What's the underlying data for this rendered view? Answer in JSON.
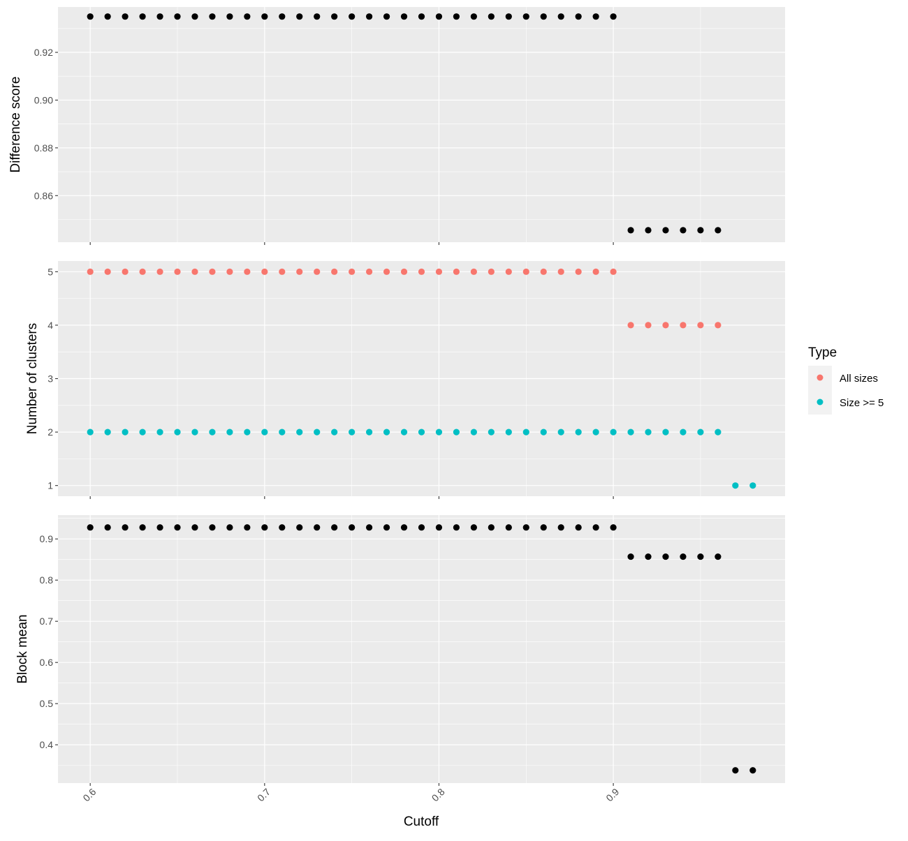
{
  "xlabel": "Cutoff",
  "x_ticks": [
    0.6,
    0.7,
    0.8,
    0.9
  ],
  "x_tick_labels": [
    "0.6",
    "0.7",
    "0.8",
    "0.9"
  ],
  "xlim": [
    0.5815,
    0.9985
  ],
  "legend": {
    "title": "Type",
    "placement": "right",
    "items": [
      {
        "label": "All sizes",
        "color": "#F8766D"
      },
      {
        "label": "Size >= 5",
        "color": "#00BFC4"
      }
    ]
  },
  "colors": {
    "panel_bg": "#EBEBEB",
    "grid": "#FFFFFF",
    "point_default": "#000000"
  },
  "chart_data": [
    {
      "type": "scatter",
      "ylabel": "Difference score",
      "ylim": [
        0.8405,
        0.939
      ],
      "y_ticks": [
        0.86,
        0.88,
        0.9,
        0.92
      ],
      "y_tick_labels": [
        "0.86",
        "0.88",
        "0.90",
        "0.92"
      ],
      "series": [
        {
          "x": [
            0.6,
            0.61,
            0.62,
            0.63,
            0.64,
            0.65,
            0.66,
            0.67,
            0.68,
            0.69,
            0.7,
            0.71,
            0.72,
            0.73,
            0.74,
            0.75,
            0.76,
            0.77,
            0.78,
            0.79,
            0.8,
            0.81,
            0.82,
            0.83,
            0.84,
            0.85,
            0.86,
            0.87,
            0.88,
            0.89,
            0.9,
            0.91,
            0.92,
            0.93,
            0.94,
            0.95,
            0.96
          ],
          "y": [
            0.935,
            0.935,
            0.935,
            0.935,
            0.935,
            0.935,
            0.935,
            0.935,
            0.935,
            0.935,
            0.935,
            0.935,
            0.935,
            0.935,
            0.935,
            0.935,
            0.935,
            0.935,
            0.935,
            0.935,
            0.935,
            0.935,
            0.935,
            0.935,
            0.935,
            0.935,
            0.935,
            0.935,
            0.935,
            0.935,
            0.935,
            0.8455,
            0.8455,
            0.8455,
            0.8455,
            0.8455,
            0.8455
          ],
          "color": "#000000"
        }
      ]
    },
    {
      "type": "scatter",
      "ylabel": "Number of clusters",
      "ylim": [
        0.8,
        5.2
      ],
      "y_ticks": [
        1,
        2,
        3,
        4,
        5
      ],
      "y_tick_labels": [
        "1",
        "2",
        "3",
        "4",
        "5"
      ],
      "series": [
        {
          "name": "All sizes",
          "x": [
            0.6,
            0.61,
            0.62,
            0.63,
            0.64,
            0.65,
            0.66,
            0.67,
            0.68,
            0.69,
            0.7,
            0.71,
            0.72,
            0.73,
            0.74,
            0.75,
            0.76,
            0.77,
            0.78,
            0.79,
            0.8,
            0.81,
            0.82,
            0.83,
            0.84,
            0.85,
            0.86,
            0.87,
            0.88,
            0.89,
            0.9,
            0.91,
            0.92,
            0.93,
            0.94,
            0.95,
            0.96
          ],
          "y": [
            5,
            5,
            5,
            5,
            5,
            5,
            5,
            5,
            5,
            5,
            5,
            5,
            5,
            5,
            5,
            5,
            5,
            5,
            5,
            5,
            5,
            5,
            5,
            5,
            5,
            5,
            5,
            5,
            5,
            5,
            5,
            4,
            4,
            4,
            4,
            4,
            4
          ],
          "color": "#F8766D"
        },
        {
          "name": "Size >= 5",
          "x": [
            0.6,
            0.61,
            0.62,
            0.63,
            0.64,
            0.65,
            0.66,
            0.67,
            0.68,
            0.69,
            0.7,
            0.71,
            0.72,
            0.73,
            0.74,
            0.75,
            0.76,
            0.77,
            0.78,
            0.79,
            0.8,
            0.81,
            0.82,
            0.83,
            0.84,
            0.85,
            0.86,
            0.87,
            0.88,
            0.89,
            0.9,
            0.91,
            0.92,
            0.93,
            0.94,
            0.95,
            0.96,
            0.97,
            0.98
          ],
          "y": [
            2,
            2,
            2,
            2,
            2,
            2,
            2,
            2,
            2,
            2,
            2,
            2,
            2,
            2,
            2,
            2,
            2,
            2,
            2,
            2,
            2,
            2,
            2,
            2,
            2,
            2,
            2,
            2,
            2,
            2,
            2,
            2,
            2,
            2,
            2,
            2,
            2,
            1,
            1
          ],
          "color": "#00BFC4"
        }
      ]
    },
    {
      "type": "scatter",
      "ylabel": "Block mean",
      "ylim": [
        0.307,
        0.958
      ],
      "y_ticks": [
        0.4,
        0.5,
        0.6,
        0.7,
        0.8,
        0.9
      ],
      "y_tick_labels": [
        "0.4",
        "0.5",
        "0.6",
        "0.7",
        "0.8",
        "0.9"
      ],
      "series": [
        {
          "x": [
            0.6,
            0.61,
            0.62,
            0.63,
            0.64,
            0.65,
            0.66,
            0.67,
            0.68,
            0.69,
            0.7,
            0.71,
            0.72,
            0.73,
            0.74,
            0.75,
            0.76,
            0.77,
            0.78,
            0.79,
            0.8,
            0.81,
            0.82,
            0.83,
            0.84,
            0.85,
            0.86,
            0.87,
            0.88,
            0.89,
            0.9,
            0.91,
            0.92,
            0.93,
            0.94,
            0.95,
            0.96,
            0.97,
            0.98
          ],
          "y": [
            0.928,
            0.928,
            0.928,
            0.928,
            0.928,
            0.928,
            0.928,
            0.928,
            0.928,
            0.928,
            0.928,
            0.928,
            0.928,
            0.928,
            0.928,
            0.928,
            0.928,
            0.928,
            0.928,
            0.928,
            0.928,
            0.928,
            0.928,
            0.928,
            0.928,
            0.928,
            0.928,
            0.928,
            0.928,
            0.928,
            0.928,
            0.857,
            0.857,
            0.857,
            0.857,
            0.857,
            0.857,
            0.338,
            0.338
          ],
          "color": "#000000"
        }
      ]
    }
  ]
}
